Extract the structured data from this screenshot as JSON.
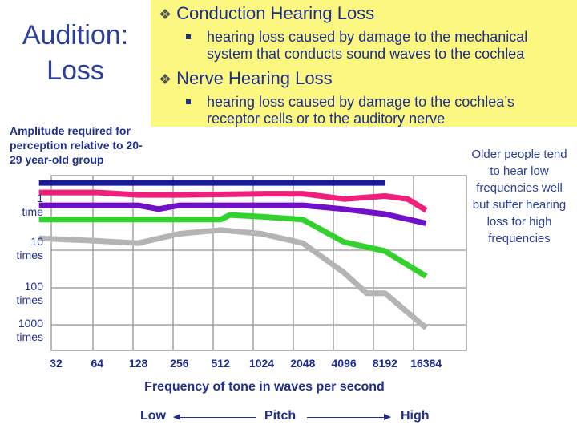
{
  "slide": {
    "title_line1": "Audition:",
    "title_line2": "Loss"
  },
  "definitions": [
    {
      "term": "Conduction Hearing Loss",
      "text": "hearing loss caused by damage to the mechanical system that conducts sound waves to the cochlea"
    },
    {
      "term": "Nerve Hearing Loss",
      "text": "hearing loss caused by damage to the cochlea’s receptor cells or to the auditory nerve"
    }
  ],
  "note": "Older people tend to hear low frequencies well but suffer hearing loss for high frequencies",
  "pitch": {
    "low": "Low",
    "label": "Pitch",
    "high": "High"
  },
  "colors": {
    "background_box": "#fbf780",
    "text": "#1f2f8f",
    "grid": "#a3a3a3"
  },
  "chart_data": {
    "type": "line",
    "title": "",
    "xlabel": "Frequency of tone in waves per second",
    "ylabel": "Amplitude required for perception relative to 20-29 year-old group",
    "x_categories": [
      "32",
      "64",
      "128",
      "256",
      "512",
      "1024",
      "2048",
      "4096",
      "8192",
      "16384"
    ],
    "y_ticks": [
      {
        "value": 1,
        "label": "1\ntime"
      },
      {
        "value": 10,
        "label": "10\ntimes"
      },
      {
        "value": 100,
        "label": "100\ntimes"
      },
      {
        "value": 1000,
        "label": "1000\ntimes"
      }
    ],
    "y_scale": "log",
    "ylim": [
      0.35,
      1800
    ],
    "series": [
      {
        "name": "age 20-29",
        "color": "#1a1a9c",
        "x": [
          24,
          8192
        ],
        "y": [
          0.5,
          0.5
        ]
      },
      {
        "name": "pink",
        "color": "#f0207a",
        "x": [
          24,
          64,
          128,
          256,
          512,
          1024,
          2048,
          4096,
          8192,
          12000,
          16384
        ],
        "y": [
          0.8,
          0.8,
          0.9,
          0.9,
          0.88,
          0.85,
          0.85,
          1.1,
          0.95,
          1.1,
          1.9
        ]
      },
      {
        "name": "purple",
        "color": "#7010c8",
        "x": [
          24,
          64,
          128,
          180,
          256,
          512,
          1024,
          2048,
          4096,
          8192,
          16384
        ],
        "y": [
          1.5,
          1.5,
          1.5,
          1.8,
          1.5,
          1.5,
          1.5,
          1.5,
          1.8,
          2.3,
          3.6
        ]
      },
      {
        "name": "green",
        "color": "#33d12e",
        "x": [
          24,
          64,
          128,
          256,
          512,
          600,
          1024,
          2048,
          4096,
          8192,
          16384
        ],
        "y": [
          3.0,
          3.0,
          3.0,
          3.0,
          3.0,
          2.4,
          2.6,
          3.0,
          9.0,
          14.0,
          48.0
        ]
      },
      {
        "name": "gray",
        "color": "#b4b4b4",
        "x": [
          24,
          64,
          128,
          256,
          512,
          1024,
          2048,
          4096,
          6000,
          8192,
          16384
        ],
        "y": [
          7.5,
          8.5,
          9.5,
          6.0,
          5.0,
          6.0,
          9.5,
          40.0,
          110.0,
          110.0,
          600.0
        ]
      }
    ]
  }
}
